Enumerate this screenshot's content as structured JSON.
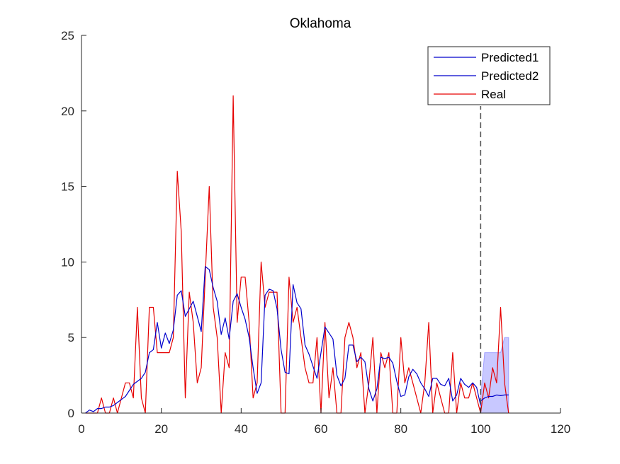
{
  "chart_data": {
    "type": "line",
    "title": "Oklahoma",
    "xlabel": "",
    "ylabel": "",
    "xlim": [
      0,
      120
    ],
    "ylim": [
      0,
      25
    ],
    "xticks": [
      0,
      20,
      40,
      60,
      80,
      100,
      120
    ],
    "yticks": [
      0,
      5,
      10,
      15,
      20,
      25
    ],
    "grid": false,
    "legend_position": "top-right",
    "vline_x": 100,
    "series": [
      {
        "name": "Predicted1",
        "color": "#0000cc",
        "x": [
          1,
          2,
          3,
          4,
          5,
          6,
          7,
          8,
          9,
          10,
          11,
          12,
          13,
          14,
          15,
          16,
          17,
          18,
          19,
          20,
          21,
          22,
          23,
          24,
          25,
          26,
          27,
          28,
          29,
          30,
          31,
          32,
          33,
          34,
          35,
          36,
          37,
          38,
          39,
          40,
          41,
          42,
          43,
          44,
          45,
          46,
          47,
          48,
          49,
          50,
          51,
          52,
          53,
          54,
          55,
          56,
          57,
          58,
          59,
          60,
          61,
          62,
          63,
          64,
          65,
          66,
          67,
          68,
          69,
          70,
          71,
          72,
          73,
          74,
          75,
          76,
          77,
          78,
          79,
          80,
          81,
          82,
          83,
          84,
          85,
          86,
          87,
          88,
          89,
          90,
          91,
          92,
          93,
          94,
          95,
          96,
          97,
          98,
          99,
          100
        ],
        "values": [
          0.0,
          0.2,
          0.1,
          0.3,
          0.3,
          0.4,
          0.4,
          0.5,
          0.7,
          0.9,
          1.1,
          1.5,
          1.9,
          2.1,
          2.3,
          2.7,
          4.0,
          4.2,
          6.0,
          4.3,
          5.3,
          4.6,
          5.5,
          7.8,
          8.1,
          6.4,
          6.9,
          7.4,
          6.4,
          5.4,
          9.7,
          9.5,
          8.3,
          7.4,
          5.2,
          6.3,
          4.9,
          7.4,
          7.9,
          7.0,
          6.2,
          5.0,
          3.0,
          1.3,
          2.0,
          7.8,
          8.2,
          8.1,
          6.9,
          4.2,
          2.7,
          2.6,
          8.5,
          7.3,
          6.9,
          4.5,
          3.9,
          3.1,
          2.3,
          4.0,
          5.7,
          5.3,
          4.9,
          2.5,
          1.8,
          2.3,
          4.5,
          4.5,
          3.4,
          3.7,
          3.4,
          1.6,
          0.8,
          1.6,
          3.7,
          3.6,
          3.7,
          3.3,
          2.1,
          1.1,
          1.2,
          2.4,
          2.9,
          2.6,
          2.0,
          1.6,
          1.1,
          2.3,
          2.3,
          1.9,
          1.8,
          2.3,
          0.8,
          1.2,
          2.3,
          1.9,
          1.7,
          2.0,
          1.7,
          0.5
        ]
      },
      {
        "name": "Predicted2",
        "color": "#0000cc",
        "x": [
          100,
          101,
          102,
          103,
          104,
          105,
          106,
          107
        ],
        "values": [
          0.8,
          1.0,
          1.1,
          1.1,
          1.2,
          1.15,
          1.2,
          1.2
        ]
      },
      {
        "name": "Real",
        "color": "#e60000",
        "x": [
          1,
          2,
          3,
          4,
          5,
          6,
          7,
          8,
          9,
          10,
          11,
          12,
          13,
          14,
          15,
          16,
          17,
          18,
          19,
          20,
          21,
          22,
          23,
          24,
          25,
          26,
          27,
          28,
          29,
          30,
          31,
          32,
          33,
          34,
          35,
          36,
          37,
          38,
          39,
          40,
          41,
          42,
          43,
          44,
          45,
          46,
          47,
          48,
          49,
          50,
          51,
          52,
          53,
          54,
          55,
          56,
          57,
          58,
          59,
          60,
          61,
          62,
          63,
          64,
          65,
          66,
          67,
          68,
          69,
          70,
          71,
          72,
          73,
          74,
          75,
          76,
          77,
          78,
          79,
          80,
          81,
          82,
          83,
          84,
          85,
          86,
          87,
          88,
          89,
          90,
          91,
          92,
          93,
          94,
          95,
          96,
          97,
          98,
          99,
          100,
          101,
          102,
          103,
          104,
          105,
          106,
          107
        ],
        "values": [
          0,
          0,
          0,
          0,
          1,
          0,
          0,
          1,
          0,
          1,
          2,
          2,
          1,
          7,
          1,
          0,
          7,
          7,
          4,
          4,
          4,
          4,
          5,
          16,
          12,
          1,
          8,
          6,
          2,
          3,
          9,
          15,
          7,
          5,
          0,
          4,
          3,
          21,
          6,
          9,
          9,
          6,
          1,
          2,
          10,
          7,
          8,
          8,
          8,
          0,
          0,
          9,
          6,
          7,
          5,
          3,
          2,
          2,
          5,
          0,
          6,
          1,
          3,
          0,
          0,
          5,
          6,
          5,
          3,
          4,
          0,
          2,
          5,
          0,
          4,
          3,
          4,
          0,
          0,
          5,
          2,
          3,
          2,
          1,
          0,
          2,
          6,
          0,
          2,
          1,
          0,
          0,
          4,
          0,
          2,
          1,
          1,
          2,
          1,
          0,
          2,
          1,
          3,
          2,
          7,
          2,
          0
        ]
      }
    ],
    "band": {
      "x": [
        100,
        101,
        102,
        103,
        104,
        105,
        106,
        107
      ],
      "lower": [
        0,
        0,
        0,
        0,
        0,
        0,
        0,
        0
      ],
      "upper": [
        1,
        4,
        4,
        4,
        4,
        4,
        5,
        5
      ],
      "color": "#c8c8ff"
    }
  }
}
